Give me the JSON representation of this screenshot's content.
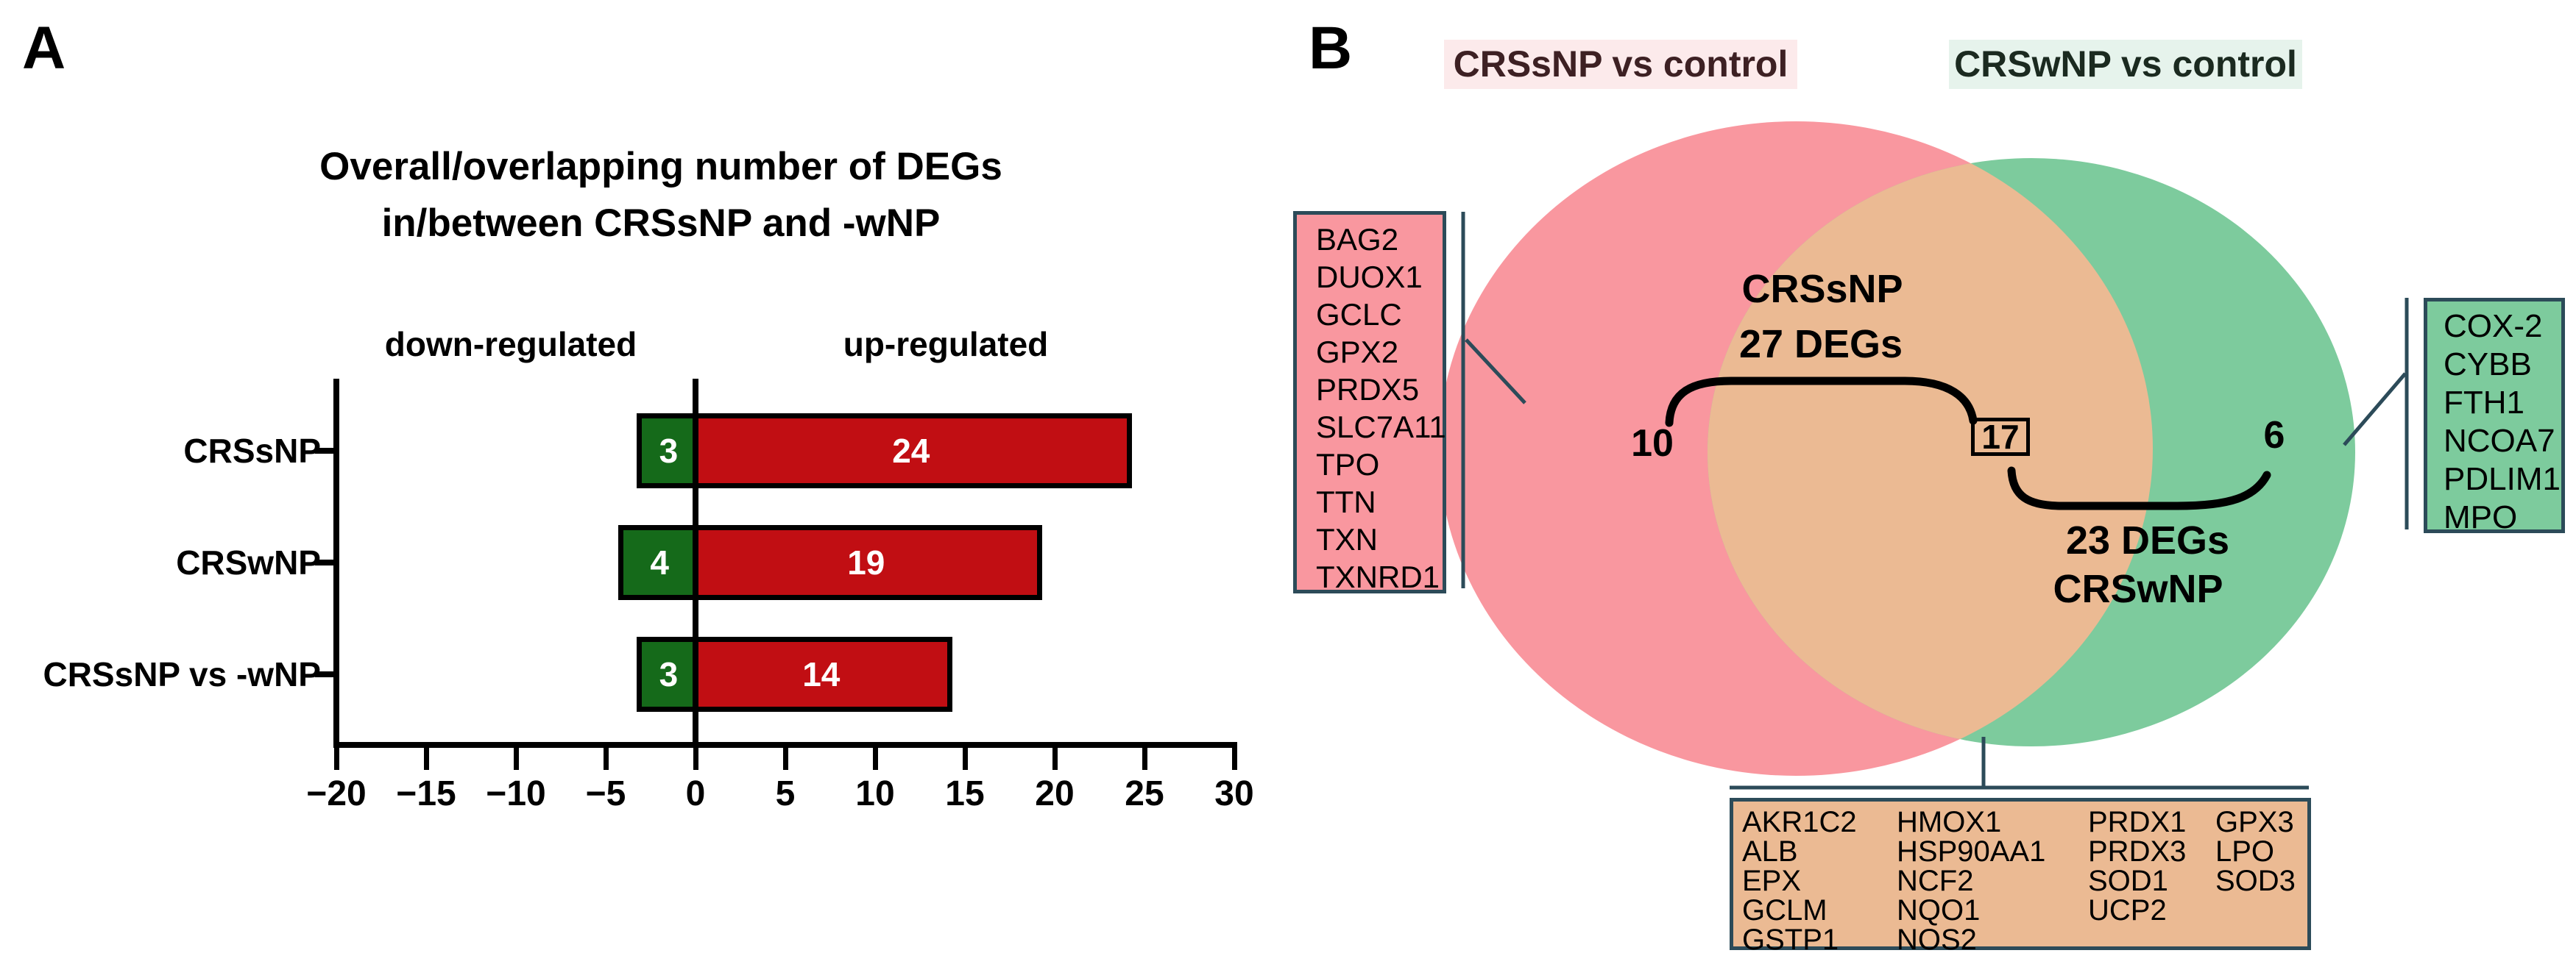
{
  "colors": {
    "bar_red": "#c10e13",
    "bar_green": "#156a1a",
    "axis_black": "#000000",
    "bar_value_text": "#ffffff",
    "venn_pink": "#f9979f",
    "venn_green": "#7dcb9d",
    "venn_overlap": "#ebba93",
    "pink_header_bg": "#fceaeb",
    "pink_header_text": "#3d2023",
    "green_header_bg": "#e6f3ec",
    "green_header_text": "#1b2a20",
    "gene_box_border": "#2c4b59",
    "bracket_black": "#000000"
  },
  "panel_a": {
    "letter": "A",
    "title_line1": "Overall/overlapping number of DEGs",
    "title_line2": "in/between CRSsNP and -wNP",
    "header_down": "down-regulated",
    "header_up": "up-regulated"
  },
  "panel_b": {
    "letter": "B",
    "left_set_label": "CRSsNP vs control",
    "right_set_label": "CRSwNP vs control",
    "left_only_count": "10",
    "overlap_count": "17",
    "right_only_count": "6",
    "left_brace_line1": "CRSsNP",
    "left_brace_line2": "27 DEGs",
    "right_brace_line1": "23 DEGs",
    "right_brace_line2": "CRSwNP",
    "left_genes": [
      "BAG2",
      "DUOX1",
      "GCLC",
      "GPX2",
      "PRDX5",
      "SLC7A11",
      "TPO",
      "TTN",
      "TXN",
      "TXNRD1"
    ],
    "right_genes": [
      "COX-2",
      "CYBB",
      "FTH1",
      "NCOA7",
      "PDLIM1",
      "MPO"
    ],
    "overlap_genes_columns": [
      [
        "AKR1C2",
        "ALB",
        "EPX",
        "GCLM",
        "GSTP1"
      ],
      [
        "HMOX1",
        "HSP90AA1",
        "NCF2",
        "NQO1",
        "NOS2"
      ],
      [
        "PRDX1",
        "PRDX3",
        "SOD1",
        "UCP2"
      ],
      [
        "GPX3",
        "LPO",
        "SOD3"
      ]
    ]
  },
  "chart_data": {
    "type": "bar",
    "orientation": "horizontal",
    "title": "Overall/overlapping number of DEGs in/between CRSsNP and -wNP",
    "categories": [
      "CRSsNP",
      "CRSwNP",
      "CRSsNP vs -wNP"
    ],
    "series": [
      {
        "name": "down-regulated",
        "values": [
          3,
          4,
          3
        ],
        "sign": -1,
        "color": "#156a1a"
      },
      {
        "name": "up-regulated",
        "values": [
          24,
          19,
          14
        ],
        "sign": 1,
        "color": "#c10e13"
      }
    ],
    "xlim": [
      -20,
      30
    ],
    "x_ticks": [
      -20,
      -15,
      -10,
      -5,
      0,
      5,
      10,
      15,
      20,
      25,
      30
    ],
    "x_tick_labels": [
      "−20",
      "−15",
      "−10",
      "−5",
      "0",
      "5",
      "10",
      "15",
      "20",
      "25",
      "30"
    ],
    "grid": false,
    "legend_position": "column headers above plot"
  }
}
